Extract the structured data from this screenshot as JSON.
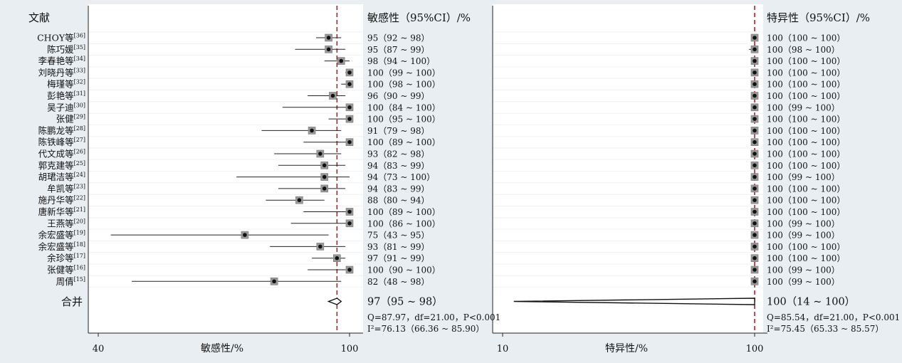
{
  "colors": {
    "background": "#e9eef2",
    "panel": "#ffffff",
    "null_line": "#b0202a",
    "marker_box": "#999999",
    "point": "#111111"
  },
  "header": {
    "study_col": "文献",
    "sens_col": "敏感性（95%CI）/%",
    "spec_col": "特异性（95%CI）/%"
  },
  "pooled_label": "合并",
  "chart_data": [
    {
      "type": "forest",
      "panel": "sensitivity",
      "xlabel": "敏感性/%",
      "xlim": [
        40,
        100
      ],
      "x_ticks": [
        "40",
        "100"
      ],
      "reference_line": 97,
      "studies": [
        {
          "name": "CHOY等",
          "ref": "[36]",
          "est": 95,
          "lo": 92,
          "hi": 98,
          "label": "95（92 ~ 98）"
        },
        {
          "name": "陈巧媛",
          "ref": "[35]",
          "est": 95,
          "lo": 87,
          "hi": 99,
          "label": "95（87 ~ 99）"
        },
        {
          "name": "李春艳等",
          "ref": "[34]",
          "est": 98,
          "lo": 94,
          "hi": 100,
          "label": "98（94 ~ 100）"
        },
        {
          "name": "刘晓丹等",
          "ref": "[33]",
          "est": 100,
          "lo": 99,
          "hi": 100,
          "label": "100（99 ~ 100）"
        },
        {
          "name": "梅瑾等",
          "ref": "[32]",
          "est": 100,
          "lo": 98,
          "hi": 100,
          "label": "100（98 ~ 100）"
        },
        {
          "name": "彭艳等",
          "ref": "[31]",
          "est": 96,
          "lo": 90,
          "hi": 99,
          "label": "96（90 ~ 99）"
        },
        {
          "name": "吴子迪",
          "ref": "[30]",
          "est": 100,
          "lo": 84,
          "hi": 100,
          "label": "100（84 ~ 100）"
        },
        {
          "name": "张健",
          "ref": "[29]",
          "est": 100,
          "lo": 95,
          "hi": 100,
          "label": "100（95 ~ 100）"
        },
        {
          "name": "陈鹏龙等",
          "ref": "[28]",
          "est": 91,
          "lo": 79,
          "hi": 98,
          "label": "91（79 ~ 98）"
        },
        {
          "name": "陈铁峰等",
          "ref": "[27]",
          "est": 100,
          "lo": 89,
          "hi": 100,
          "label": "100（89 ~ 100）"
        },
        {
          "name": "代文成等",
          "ref": "[26]",
          "est": 93,
          "lo": 82,
          "hi": 98,
          "label": "93（82 ~ 98）"
        },
        {
          "name": "郭克建等",
          "ref": "[25]",
          "est": 94,
          "lo": 83,
          "hi": 99,
          "label": "94（83 ~ 99）"
        },
        {
          "name": "胡珺洁等",
          "ref": "[24]",
          "est": 94,
          "lo": 73,
          "hi": 100,
          "label": "94（73 ~ 100）"
        },
        {
          "name": "牟凯等",
          "ref": "[23]",
          "est": 94,
          "lo": 83,
          "hi": 99,
          "label": "94（83 ~ 99）"
        },
        {
          "name": "施丹华等",
          "ref": "[22]",
          "est": 88,
          "lo": 80,
          "hi": 94,
          "label": "88（80 ~ 94）"
        },
        {
          "name": "唐新华等",
          "ref": "[21]",
          "est": 100,
          "lo": 89,
          "hi": 100,
          "label": "100（89 ~ 100）"
        },
        {
          "name": "王燕等",
          "ref": "[20]",
          "est": 100,
          "lo": 86,
          "hi": 100,
          "label": "100（86 ~ 100）"
        },
        {
          "name": "余宏盛等",
          "ref": "[19]",
          "est": 75,
          "lo": 43,
          "hi": 95,
          "label": "75（43 ~ 95）"
        },
        {
          "name": "余宏盛等",
          "ref": "[18]",
          "est": 93,
          "lo": 81,
          "hi": 99,
          "label": "93（81 ~ 99）"
        },
        {
          "name": "余珍等",
          "ref": "[17]",
          "est": 97,
          "lo": 91,
          "hi": 99,
          "label": "97（91 ~ 99）"
        },
        {
          "name": "张健等",
          "ref": "[16]",
          "est": 100,
          "lo": 90,
          "hi": 100,
          "label": "100（90 ~ 100）"
        },
        {
          "name": "周倩",
          "ref": "[15]",
          "est": 82,
          "lo": 48,
          "hi": 98,
          "label": "82（48 ~ 98）"
        }
      ],
      "pooled": {
        "est": 97,
        "lo": 95,
        "hi": 98,
        "label": "97（95 ~ 98）"
      },
      "stats_q": {
        "q": "Q=87.97，",
        "df": "df=21.00，",
        "p": "P<0.001"
      },
      "stats_i2": {
        "i2": "I²=76.13（66.36 ~ 85.90）"
      }
    },
    {
      "type": "forest",
      "panel": "specificity",
      "xlabel": "特异性/%",
      "xlim": [
        10,
        100
      ],
      "x_ticks": [
        "10",
        "100"
      ],
      "reference_line": 100,
      "studies": [
        {
          "est": 100,
          "lo": 100,
          "hi": 100,
          "label": "100（100 ~ 100）"
        },
        {
          "est": 100,
          "lo": 98,
          "hi": 100,
          "label": "100（98 ~ 100）"
        },
        {
          "est": 100,
          "lo": 100,
          "hi": 100,
          "label": "100（100 ~ 100）"
        },
        {
          "est": 100,
          "lo": 100,
          "hi": 100,
          "label": "100（100 ~ 100）"
        },
        {
          "est": 100,
          "lo": 100,
          "hi": 100,
          "label": "100（100 ~ 100）"
        },
        {
          "est": 100,
          "lo": 100,
          "hi": 100,
          "label": "100（100 ~ 100）"
        },
        {
          "est": 100,
          "lo": 99,
          "hi": 100,
          "label": "100（99 ~ 100）"
        },
        {
          "est": 100,
          "lo": 100,
          "hi": 100,
          "label": "100（100 ~ 100）"
        },
        {
          "est": 100,
          "lo": 100,
          "hi": 100,
          "label": "100（100 ~ 100）"
        },
        {
          "est": 100,
          "lo": 100,
          "hi": 100,
          "label": "100（100 ~ 100）"
        },
        {
          "est": 100,
          "lo": 100,
          "hi": 100,
          "label": "100（100 ~ 100）"
        },
        {
          "est": 100,
          "lo": 100,
          "hi": 100,
          "label": "100（100 ~ 100）"
        },
        {
          "est": 100,
          "lo": 99,
          "hi": 100,
          "label": "100（99 ~ 100）"
        },
        {
          "est": 100,
          "lo": 100,
          "hi": 100,
          "label": "100（100 ~ 100）"
        },
        {
          "est": 100,
          "lo": 100,
          "hi": 100,
          "label": "100（100 ~ 100）"
        },
        {
          "est": 100,
          "lo": 100,
          "hi": 100,
          "label": "100（100 ~ 100）"
        },
        {
          "est": 100,
          "lo": 99,
          "hi": 100,
          "label": "100（99 ~ 100）"
        },
        {
          "est": 100,
          "lo": 99,
          "hi": 100,
          "label": "100（99 ~ 100）"
        },
        {
          "est": 100,
          "lo": 100,
          "hi": 100,
          "label": "100（100 ~ 100）"
        },
        {
          "est": 100,
          "lo": 100,
          "hi": 100,
          "label": "100（100 ~ 100）"
        },
        {
          "est": 100,
          "lo": 99,
          "hi": 100,
          "label": "100（99 ~ 100）"
        },
        {
          "est": 100,
          "lo": 99,
          "hi": 100,
          "label": "100（99 ~ 100）"
        }
      ],
      "pooled": {
        "est": 100,
        "lo": 14,
        "hi": 100,
        "label": "100（14 ~ 100）"
      },
      "stats_q": {
        "q": "Q=85.54，",
        "df": "df=21.00，",
        "p": "P<0.001"
      },
      "stats_i2": {
        "i2": "I²=75.45（65.33 ~ 85.57）"
      }
    }
  ]
}
